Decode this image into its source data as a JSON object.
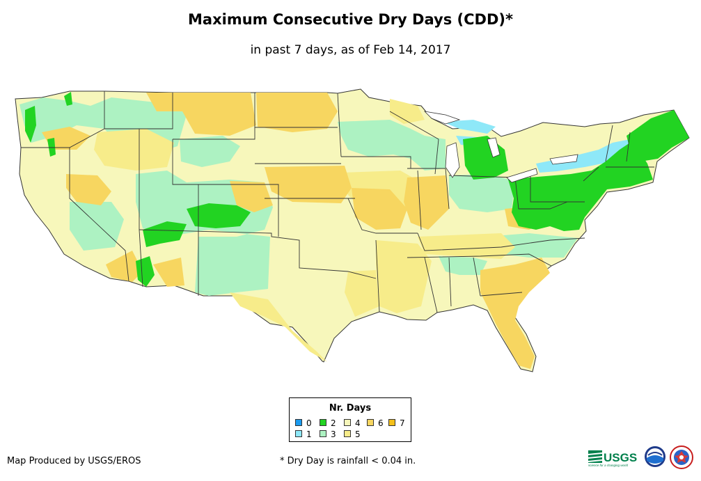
{
  "title": "Maximum Consecutive Dry Days (CDD)*",
  "subtitle": "in past 7 days, as of Feb 14, 2017",
  "legend": {
    "title": "Nr. Days",
    "items": [
      {
        "label": "0",
        "color": "#1a9bf0"
      },
      {
        "label": "1",
        "color": "#8ee8f8"
      },
      {
        "label": "2",
        "color": "#22d322"
      },
      {
        "label": "3",
        "color": "#adf2c2"
      },
      {
        "label": "4",
        "color": "#f7f7bb"
      },
      {
        "label": "5",
        "color": "#f7ec8a"
      },
      {
        "label": "6",
        "color": "#f7d660"
      },
      {
        "label": "7",
        "color": "#f4c01a"
      }
    ]
  },
  "credit": "Map Produced by USGS/EROS",
  "footnote": "* Dry Day is rainfall < 0.04 in.",
  "logos": {
    "usgs": "USGS",
    "usgs_tagline": "science for a changing world"
  }
}
